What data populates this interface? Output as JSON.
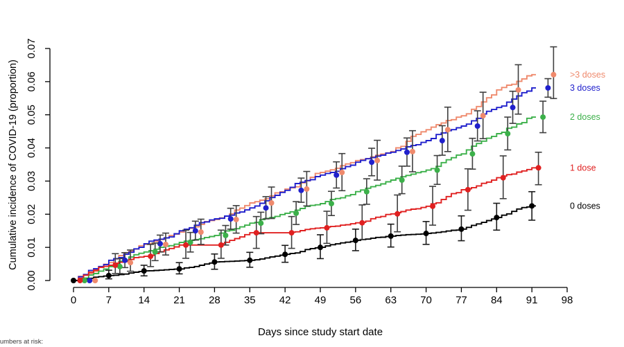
{
  "footer": {
    "text": "Numbers at risk:"
  },
  "chart_data": {
    "type": "line",
    "subtype": "step-cumulative-incidence-with-ci-errorbars",
    "title": "",
    "xlabel": "Days since study start date",
    "ylabel": "Cumulative incidence of COVID-19 (proportion)",
    "xlim": [
      0,
      98
    ],
    "ylim": [
      0,
      0.07
    ],
    "x_ticks": [
      0,
      7,
      14,
      21,
      28,
      35,
      42,
      49,
      56,
      63,
      70,
      77,
      84,
      91,
      98
    ],
    "y_tick_labels": [
      "0.00",
      "0.01",
      "0.02",
      "0.03",
      "0.04",
      "0.05",
      "0.06",
      "0.07"
    ],
    "grid": false,
    "legend_position": "right-outside-at-curve-end",
    "errorbar_interval_days": 7,
    "point_days": [
      0,
      7,
      14,
      21,
      28,
      35,
      42,
      49,
      56,
      63,
      70,
      77,
      84,
      91
    ],
    "series": [
      {
        "name": ">3 doses",
        "label": ">3 doses",
        "color": "#ef8a6d",
        "bar_color": "#3f3f3f",
        "jitter_days": 4.3,
        "values": [
          0,
          0.0054,
          0.0109,
          0.0146,
          0.0184,
          0.0234,
          0.0276,
          0.0326,
          0.0362,
          0.0389,
          0.0455,
          0.0497,
          0.0575,
          0.0621
        ],
        "ci_low": [
          0,
          0.0028,
          0.0077,
          0.0109,
          0.0143,
          0.0187,
          0.0225,
          0.0271,
          0.0303,
          0.0328,
          0.0389,
          0.0428,
          0.0502,
          0.0549
        ],
        "ci_high": [
          0,
          0.0092,
          0.0143,
          0.0185,
          0.0226,
          0.0282,
          0.0329,
          0.0383,
          0.0423,
          0.0452,
          0.0523,
          0.0568,
          0.0651,
          0.0705
        ]
      },
      {
        "name": "3 doses",
        "label": "3 doses",
        "color": "#2020cc",
        "bar_color": "#3f3f3f",
        "jitter_days": 3.2,
        "values": [
          0,
          0.0061,
          0.0111,
          0.015,
          0.0186,
          0.0219,
          0.0272,
          0.0318,
          0.0357,
          0.0387,
          0.0422,
          0.0466,
          0.0522,
          0.0581
        ],
        "ci_low": [
          0,
          0.0039,
          0.0086,
          0.0122,
          0.0155,
          0.0186,
          0.0236,
          0.0279,
          0.0316,
          0.0345,
          0.0378,
          0.0421,
          0.0474,
          0.0553
        ],
        "ci_high": [
          0,
          0.0084,
          0.0137,
          0.0179,
          0.0218,
          0.0253,
          0.0309,
          0.0358,
          0.0399,
          0.043,
          0.0467,
          0.0512,
          0.0571,
          0.0609
        ]
      },
      {
        "name": "2 doses",
        "label": "2 doses",
        "color": "#3cb04a",
        "bar_color": "#3f3f3f",
        "jitter_days": 2.2,
        "values": [
          0,
          0.0042,
          0.0086,
          0.0115,
          0.0136,
          0.0173,
          0.0203,
          0.0232,
          0.0268,
          0.0303,
          0.0333,
          0.0382,
          0.0443,
          0.0493
        ],
        "ci_low": [
          0,
          0.0021,
          0.006,
          0.0086,
          0.0107,
          0.0141,
          0.0169,
          0.0196,
          0.023,
          0.0262,
          0.029,
          0.0336,
          0.0394,
          0.0446
        ],
        "ci_high": [
          0,
          0.0066,
          0.0113,
          0.0145,
          0.0166,
          0.0206,
          0.0238,
          0.0269,
          0.0307,
          0.0345,
          0.0377,
          0.0429,
          0.0493,
          0.0541
        ]
      },
      {
        "name": "1 dose",
        "label": "1 dose",
        "color": "#e02020",
        "bar_color": "#3f3f3f",
        "jitter_days": 1.3,
        "values": [
          0,
          0.0046,
          0.0073,
          0.0107,
          0.0107,
          0.0144,
          0.0144,
          0.0159,
          0.0174,
          0.0201,
          0.0224,
          0.0274,
          0.031,
          0.034
        ],
        "ci_low": [
          0,
          0.0021,
          0.0042,
          0.0067,
          0.0067,
          0.0097,
          0.0097,
          0.0112,
          0.0123,
          0.0147,
          0.0167,
          0.0212,
          0.0247,
          0.0289
        ],
        "ci_high": [
          0,
          0.0081,
          0.0109,
          0.0152,
          0.0152,
          0.0193,
          0.0193,
          0.0209,
          0.0228,
          0.0258,
          0.0284,
          0.0337,
          0.0376,
          0.0387
        ]
      },
      {
        "name": "0 doses",
        "label": "0 doses",
        "color": "#000000",
        "bar_color": "#1a1a1a",
        "jitter_days": 0,
        "values": [
          0,
          0.0015,
          0.0029,
          0.0035,
          0.0056,
          0.0061,
          0.0079,
          0.01,
          0.0121,
          0.0134,
          0.0142,
          0.0155,
          0.019,
          0.0225
        ],
        "ci_low": [
          0,
          0.0005,
          0.0014,
          0.002,
          0.0034,
          0.004,
          0.0055,
          0.0066,
          0.009,
          0.0101,
          0.0109,
          0.012,
          0.0152,
          0.0182
        ],
        "ci_high": [
          0,
          0.0031,
          0.0046,
          0.0054,
          0.008,
          0.0085,
          0.0106,
          0.0138,
          0.0155,
          0.017,
          0.0178,
          0.0195,
          0.0233,
          0.0268
        ]
      }
    ]
  }
}
